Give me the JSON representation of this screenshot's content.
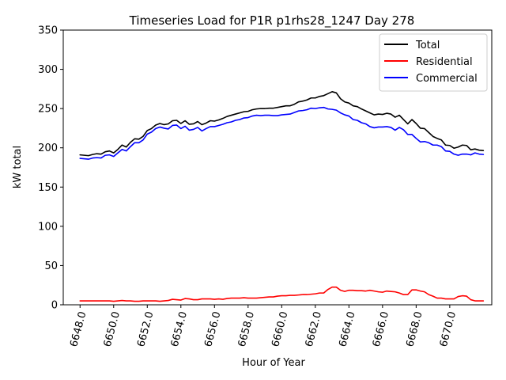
{
  "chart_data": {
    "type": "line",
    "title": "Timeseries Load for P1R p1rhs28_1247  Day 278",
    "xlabel": "Hour of Year",
    "ylabel": "kW total",
    "xlim": [
      6647.0,
      6672.5
    ],
    "ylim": [
      0,
      350
    ],
    "xticks": [
      6648.0,
      6650.0,
      6652.0,
      6654.0,
      6656.0,
      6658.0,
      6660.0,
      6662.0,
      6664.0,
      6666.0,
      6668.0,
      6670.0
    ],
    "xtick_labels": [
      "6648.0",
      "6650.0",
      "6652.0",
      "6654.0",
      "6656.0",
      "6658.0",
      "6660.0",
      "6662.0",
      "6664.0",
      "6666.0",
      "6668.0",
      "6670.0"
    ],
    "yticks": [
      0,
      50,
      100,
      150,
      200,
      250,
      300,
      350
    ],
    "ytick_labels": [
      "0",
      "50",
      "100",
      "150",
      "200",
      "250",
      "300",
      "350"
    ],
    "grid": false,
    "legend": "top-right",
    "series": [
      {
        "name": "Total",
        "color": "#000000",
        "points": [
          [
            6648.0,
            191
          ],
          [
            6648.25,
            190.5
          ],
          [
            6648.5,
            190
          ],
          [
            6648.75,
            191.5
          ],
          [
            6649.0,
            192.5
          ],
          [
            6649.25,
            192
          ],
          [
            6649.5,
            195
          ],
          [
            6649.75,
            196
          ],
          [
            6650.0,
            193.5
          ],
          [
            6650.25,
            198
          ],
          [
            6650.5,
            203.5
          ],
          [
            6650.75,
            201
          ],
          [
            6651.0,
            207
          ],
          [
            6651.25,
            211.5
          ],
          [
            6651.5,
            211
          ],
          [
            6651.75,
            214.5
          ],
          [
            6652.0,
            222
          ],
          [
            6652.25,
            224.5
          ],
          [
            6652.5,
            229
          ],
          [
            6652.75,
            231
          ],
          [
            6653.0,
            229.5
          ],
          [
            6653.25,
            230.5
          ],
          [
            6653.5,
            234.5
          ],
          [
            6653.75,
            235
          ],
          [
            6654.0,
            231
          ],
          [
            6654.25,
            234.5
          ],
          [
            6654.5,
            230
          ],
          [
            6654.75,
            230.5
          ],
          [
            6655.0,
            233.5
          ],
          [
            6655.25,
            229.5
          ],
          [
            6655.5,
            231.5
          ],
          [
            6655.75,
            234.5
          ],
          [
            6656.0,
            234
          ],
          [
            6656.25,
            235.5
          ],
          [
            6656.5,
            237.5
          ],
          [
            6656.75,
            240
          ],
          [
            6657.0,
            241.5
          ],
          [
            6657.25,
            243
          ],
          [
            6657.5,
            244.5
          ],
          [
            6657.75,
            246
          ],
          [
            6658.0,
            246.5
          ],
          [
            6658.25,
            248.5
          ],
          [
            6658.5,
            249.5
          ],
          [
            6658.75,
            250
          ],
          [
            6659.0,
            250
          ],
          [
            6659.25,
            250.5
          ],
          [
            6659.5,
            250.5
          ],
          [
            6659.75,
            251.5
          ],
          [
            6660.0,
            252.5
          ],
          [
            6660.25,
            253.5
          ],
          [
            6660.5,
            253.5
          ],
          [
            6660.75,
            255.5
          ],
          [
            6661.0,
            258.5
          ],
          [
            6661.25,
            259.5
          ],
          [
            6661.5,
            261
          ],
          [
            6661.75,
            263.5
          ],
          [
            6662.0,
            263.5
          ],
          [
            6662.25,
            265.5
          ],
          [
            6662.5,
            266.5
          ],
          [
            6662.75,
            269
          ],
          [
            6663.0,
            271.5
          ],
          [
            6663.25,
            270
          ],
          [
            6663.5,
            262.5
          ],
          [
            6663.75,
            258.5
          ],
          [
            6664.0,
            257
          ],
          [
            6664.25,
            253.5
          ],
          [
            6664.5,
            252.5
          ],
          [
            6664.75,
            249.5
          ],
          [
            6665.0,
            247
          ],
          [
            6665.25,
            244.5
          ],
          [
            6665.5,
            242
          ],
          [
            6665.75,
            243
          ],
          [
            6666.0,
            242.5
          ],
          [
            6666.25,
            244
          ],
          [
            6666.5,
            243
          ],
          [
            6666.75,
            239
          ],
          [
            6667.0,
            241.5
          ],
          [
            6667.25,
            236
          ],
          [
            6667.5,
            230.5
          ],
          [
            6667.75,
            236
          ],
          [
            6668.0,
            231
          ],
          [
            6668.25,
            225
          ],
          [
            6668.5,
            224.5
          ],
          [
            6668.75,
            219.5
          ],
          [
            6669.0,
            214.5
          ],
          [
            6669.25,
            212
          ],
          [
            6669.5,
            210
          ],
          [
            6669.75,
            203.5
          ],
          [
            6670.0,
            203
          ],
          [
            6670.25,
            199.5
          ],
          [
            6670.5,
            201
          ],
          [
            6670.75,
            203.5
          ],
          [
            6671.0,
            203
          ],
          [
            6671.25,
            197.5
          ],
          [
            6671.5,
            198.5
          ],
          [
            6671.75,
            197
          ],
          [
            6672.0,
            196.5
          ]
        ]
      },
      {
        "name": "Residential",
        "color": "#ff0000",
        "points": [
          [
            6648.0,
            5
          ],
          [
            6648.25,
            5
          ],
          [
            6648.5,
            5
          ],
          [
            6648.75,
            5
          ],
          [
            6649.0,
            5
          ],
          [
            6649.25,
            5
          ],
          [
            6649.5,
            5
          ],
          [
            6649.75,
            5
          ],
          [
            6650.0,
            4.5
          ],
          [
            6650.25,
            5
          ],
          [
            6650.5,
            5.5
          ],
          [
            6650.75,
            5
          ],
          [
            6651.0,
            5
          ],
          [
            6651.25,
            4.5
          ],
          [
            6651.5,
            4.5
          ],
          [
            6651.75,
            5
          ],
          [
            6652.0,
            5
          ],
          [
            6652.25,
            5
          ],
          [
            6652.5,
            5
          ],
          [
            6652.75,
            4.5
          ],
          [
            6653.0,
            5
          ],
          [
            6653.25,
            5.5
          ],
          [
            6653.5,
            7
          ],
          [
            6653.75,
            6.5
          ],
          [
            6654.0,
            6
          ],
          [
            6654.25,
            8
          ],
          [
            6654.5,
            7.5
          ],
          [
            6654.75,
            6.5
          ],
          [
            6655.0,
            6.5
          ],
          [
            6655.25,
            7.5
          ],
          [
            6655.5,
            7.5
          ],
          [
            6655.75,
            7.5
          ],
          [
            6656.0,
            7
          ],
          [
            6656.25,
            7.5
          ],
          [
            6656.5,
            7
          ],
          [
            6656.75,
            8
          ],
          [
            6657.0,
            8.5
          ],
          [
            6657.25,
            8.5
          ],
          [
            6657.5,
            8.5
          ],
          [
            6657.75,
            9
          ],
          [
            6658.0,
            8.5
          ],
          [
            6658.25,
            8.5
          ],
          [
            6658.5,
            8.5
          ],
          [
            6658.75,
            9
          ],
          [
            6659.0,
            9.5
          ],
          [
            6659.25,
            10
          ],
          [
            6659.5,
            10
          ],
          [
            6659.75,
            11
          ],
          [
            6660.0,
            11.5
          ],
          [
            6660.25,
            11.5
          ],
          [
            6660.5,
            12
          ],
          [
            6660.75,
            12
          ],
          [
            6661.0,
            12.5
          ],
          [
            6661.25,
            13
          ],
          [
            6661.5,
            13
          ],
          [
            6661.75,
            13.5
          ],
          [
            6662.0,
            14
          ],
          [
            6662.25,
            15
          ],
          [
            6662.5,
            15
          ],
          [
            6662.75,
            19.5
          ],
          [
            6663.0,
            22.5
          ],
          [
            6663.25,
            22.5
          ],
          [
            6663.5,
            18.5
          ],
          [
            6663.75,
            17
          ],
          [
            6664.0,
            18.5
          ],
          [
            6664.25,
            18.5
          ],
          [
            6664.5,
            18
          ],
          [
            6664.75,
            18
          ],
          [
            6665.0,
            17.5
          ],
          [
            6665.25,
            18.5
          ],
          [
            6665.5,
            17.5
          ],
          [
            6665.75,
            16.5
          ],
          [
            6666.0,
            16
          ],
          [
            6666.25,
            17.5
          ],
          [
            6666.5,
            17
          ],
          [
            6666.75,
            16.5
          ],
          [
            6667.0,
            15
          ],
          [
            6667.25,
            13
          ],
          [
            6667.5,
            13
          ],
          [
            6667.75,
            19
          ],
          [
            6668.0,
            19
          ],
          [
            6668.25,
            17.5
          ],
          [
            6668.5,
            16.5
          ],
          [
            6668.75,
            13
          ],
          [
            6669.0,
            11
          ],
          [
            6669.25,
            8.5
          ],
          [
            6669.5,
            8.5
          ],
          [
            6669.75,
            7.5
          ],
          [
            6670.0,
            7.5
          ],
          [
            6670.25,
            7.5
          ],
          [
            6670.5,
            10.5
          ],
          [
            6670.75,
            11.5
          ],
          [
            6671.0,
            11
          ],
          [
            6671.25,
            6.5
          ],
          [
            6671.5,
            5
          ],
          [
            6671.75,
            5
          ],
          [
            6672.0,
            5
          ]
        ]
      },
      {
        "name": "Commercial",
        "color": "#0000ff",
        "points": [
          [
            6648.0,
            186.5
          ],
          [
            6648.25,
            186
          ],
          [
            6648.5,
            185.5
          ],
          [
            6648.75,
            187
          ],
          [
            6649.0,
            187.5
          ],
          [
            6649.25,
            187
          ],
          [
            6649.5,
            190.5
          ],
          [
            6649.75,
            191
          ],
          [
            6650.0,
            189
          ],
          [
            6650.25,
            193.5
          ],
          [
            6650.5,
            198
          ],
          [
            6650.75,
            196
          ],
          [
            6651.0,
            201.5
          ],
          [
            6651.25,
            206.5
          ],
          [
            6651.5,
            206.5
          ],
          [
            6651.75,
            210
          ],
          [
            6652.0,
            217.5
          ],
          [
            6652.25,
            220
          ],
          [
            6652.5,
            224.5
          ],
          [
            6652.75,
            226.5
          ],
          [
            6653.0,
            225
          ],
          [
            6653.25,
            224
          ],
          [
            6653.5,
            228.5
          ],
          [
            6653.75,
            229
          ],
          [
            6654.0,
            224.5
          ],
          [
            6654.25,
            227.5
          ],
          [
            6654.5,
            222.5
          ],
          [
            6654.75,
            223.5
          ],
          [
            6655.0,
            226
          ],
          [
            6655.25,
            221.5
          ],
          [
            6655.5,
            224.5
          ],
          [
            6655.75,
            227
          ],
          [
            6656.0,
            227
          ],
          [
            6656.25,
            228.5
          ],
          [
            6656.5,
            230
          ],
          [
            6656.75,
            232
          ],
          [
            6657.0,
            233
          ],
          [
            6657.25,
            235
          ],
          [
            6657.5,
            236
          ],
          [
            6657.75,
            238
          ],
          [
            6658.0,
            238.5
          ],
          [
            6658.25,
            240.5
          ],
          [
            6658.5,
            241.5
          ],
          [
            6658.75,
            241
          ],
          [
            6659.0,
            241.5
          ],
          [
            6659.25,
            241.5
          ],
          [
            6659.5,
            241
          ],
          [
            6659.75,
            241
          ],
          [
            6660.0,
            242
          ],
          [
            6660.25,
            242.5
          ],
          [
            6660.5,
            243
          ],
          [
            6660.75,
            245
          ],
          [
            6661.0,
            247
          ],
          [
            6661.25,
            247.5
          ],
          [
            6661.5,
            248.5
          ],
          [
            6661.75,
            250.5
          ],
          [
            6662.0,
            250
          ],
          [
            6662.25,
            251
          ],
          [
            6662.5,
            251.5
          ],
          [
            6662.75,
            249.5
          ],
          [
            6663.0,
            249
          ],
          [
            6663.25,
            248
          ],
          [
            6663.5,
            244.5
          ],
          [
            6663.75,
            242
          ],
          [
            6664.0,
            240.5
          ],
          [
            6664.25,
            236
          ],
          [
            6664.5,
            235
          ],
          [
            6664.75,
            232
          ],
          [
            6665.0,
            230.5
          ],
          [
            6665.25,
            227
          ],
          [
            6665.5,
            225.5
          ],
          [
            6665.75,
            226.5
          ],
          [
            6666.0,
            226.5
          ],
          [
            6666.25,
            227
          ],
          [
            6666.5,
            226
          ],
          [
            6666.75,
            222.5
          ],
          [
            6667.0,
            226
          ],
          [
            6667.25,
            223
          ],
          [
            6667.5,
            217
          ],
          [
            6667.75,
            217
          ],
          [
            6668.0,
            212
          ],
          [
            6668.25,
            207.5
          ],
          [
            6668.5,
            208
          ],
          [
            6668.75,
            206.5
          ],
          [
            6669.0,
            203.5
          ],
          [
            6669.25,
            203.5
          ],
          [
            6669.5,
            201.5
          ],
          [
            6669.75,
            196
          ],
          [
            6670.0,
            195.5
          ],
          [
            6670.25,
            192
          ],
          [
            6670.5,
            190.5
          ],
          [
            6670.75,
            192
          ],
          [
            6671.0,
            192
          ],
          [
            6671.25,
            191
          ],
          [
            6671.5,
            193.5
          ],
          [
            6671.75,
            192
          ],
          [
            6672.0,
            191.5
          ]
        ]
      }
    ]
  }
}
